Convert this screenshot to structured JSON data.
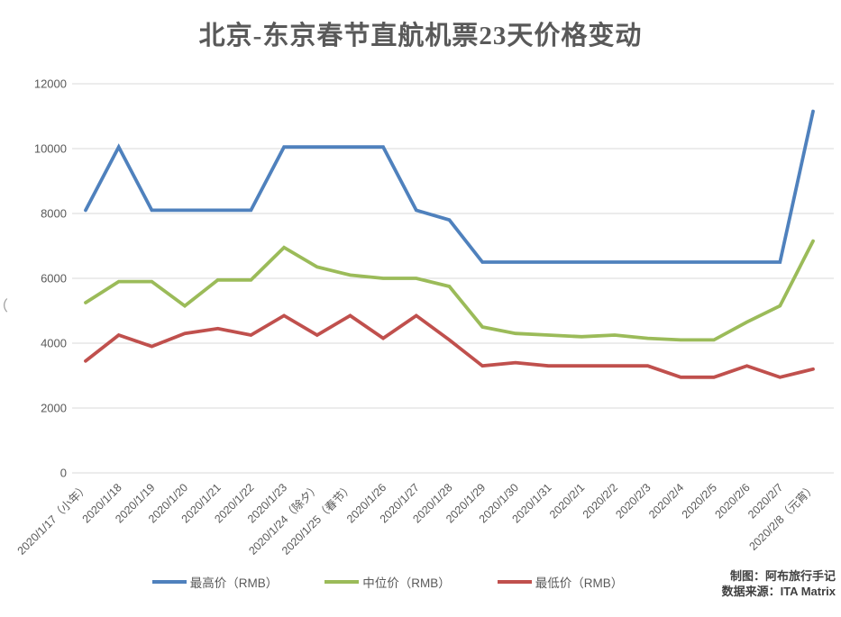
{
  "title": "北京-东京春节直航机票23天价格变动",
  "credits": {
    "made_by": "制图：阿布旅行手记",
    "data_source": "数据来源：ITA Matrix"
  },
  "left_edge_artifact": "（",
  "chart_data": {
    "type": "line",
    "title": "北京-东京春节直航机票23天价格变动",
    "xlabel": "",
    "ylabel": "",
    "ylim": [
      0,
      12000
    ],
    "y_ticks": [
      0,
      2000,
      4000,
      6000,
      8000,
      10000,
      12000
    ],
    "grid": true,
    "legend_position": "bottom",
    "text_color": "#595959",
    "grid_color": "#d9d9d9",
    "categories": [
      "2020/1/17（小年）",
      "2020/1/18",
      "2020/1/19",
      "2020/1/20",
      "2020/1/21",
      "2020/1/22",
      "2020/1/23",
      "2020/1/24（除夕）",
      "2020/1/25（春节）",
      "2020/1/26",
      "2020/1/27",
      "2020/1/28",
      "2020/1/29",
      "2020/1/30",
      "2020/1/31",
      "2020/2/1",
      "2020/2/2",
      "2020/2/3",
      "2020/2/4",
      "2020/2/5",
      "2020/2/6",
      "2020/2/7",
      "2020/2/8（元宵）"
    ],
    "series": [
      {
        "key": "highest-price",
        "name": "最高价（RMB）",
        "color": "#4F81BD",
        "values": [
          8100,
          10050,
          8100,
          8100,
          8100,
          8100,
          10050,
          10050,
          10050,
          10050,
          8100,
          7800,
          6500,
          6500,
          6500,
          6500,
          6500,
          6500,
          6500,
          6500,
          6500,
          6500,
          11150
        ]
      },
      {
        "key": "median-price",
        "name": "中位价（RMB）",
        "color": "#9BBB59",
        "values": [
          5250,
          5900,
          5900,
          5150,
          5950,
          5950,
          6950,
          6350,
          6100,
          6000,
          6000,
          5750,
          4500,
          4300,
          4250,
          4200,
          4250,
          4150,
          4100,
          4100,
          4650,
          5150,
          7150
        ]
      },
      {
        "key": "lowest-price",
        "name": "最低价（RMB）",
        "color": "#C0504D",
        "values": [
          3450,
          4250,
          3900,
          4300,
          4450,
          4250,
          4850,
          4250,
          4850,
          4150,
          4850,
          4100,
          3300,
          3400,
          3300,
          3300,
          3300,
          3300,
          2950,
          2950,
          3300,
          2950,
          3200
        ]
      }
    ]
  }
}
